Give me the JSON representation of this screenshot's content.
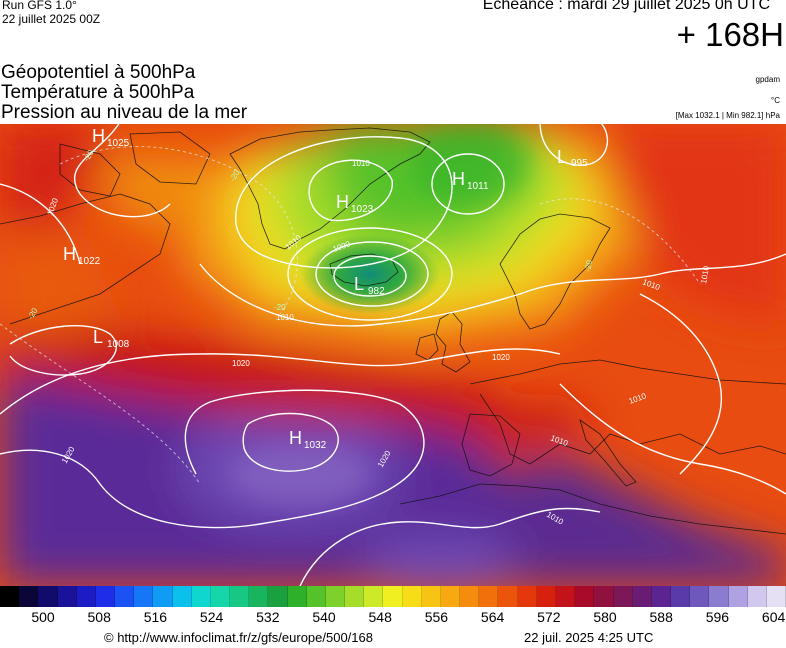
{
  "header": {
    "run_model": "Run GFS 1.0°",
    "run_date": "22 juillet 2025 00Z",
    "echeance": "Echéance : mardi 29 juillet 2025 0h UTC",
    "horizon": "+ 168H"
  },
  "fields": [
    "Géopotentiel à 500hPa",
    "Température à 500hPa",
    "Pression au niveau de la mer"
  ],
  "units": {
    "geopotential": "gpdam",
    "temperature": "°C",
    "pressure_range": "[Max 1032.1 | Min 982.1] hPa"
  },
  "map": {
    "pressure_centers": [
      {
        "type": "H",
        "value": "1025"
      },
      {
        "type": "H",
        "value": "1022"
      },
      {
        "type": "L",
        "value": "1008"
      },
      {
        "type": "H",
        "value": "1023"
      },
      {
        "type": "H",
        "value": "1011"
      },
      {
        "type": "L",
        "value": "995"
      },
      {
        "type": "L",
        "value": "982"
      },
      {
        "type": "H",
        "value": "1032"
      }
    ],
    "isobar_labels": [
      "1020",
      "1010",
      "1010",
      "1000",
      "1010",
      "1020",
      "1020",
      "1020",
      "1020",
      "1010",
      "1010",
      "1010",
      "1010",
      "1010"
    ],
    "temperature_labels": [
      "-20",
      "-20",
      "-20",
      "-20",
      "-20"
    ]
  },
  "colorbar": {
    "labels": [
      "500",
      "508",
      "516",
      "524",
      "532",
      "540",
      "548",
      "556",
      "564",
      "572",
      "580",
      "588",
      "596",
      "604"
    ],
    "colors": [
      "#000000",
      "#0a0638",
      "#130b6b",
      "#1a1298",
      "#1c1cc4",
      "#1e2ee8",
      "#1a52f4",
      "#1576f8",
      "#0f9cf4",
      "#0cc0ec",
      "#10d6d0",
      "#14d6a8",
      "#16c884",
      "#18b45e",
      "#1aa03e",
      "#2eb02a",
      "#56c22a",
      "#7ed02a",
      "#a6dc2a",
      "#ccea28",
      "#f0f020",
      "#f8dc18",
      "#f8c414",
      "#f8a810",
      "#f68c0e",
      "#f2700c",
      "#ec540c",
      "#e4380c",
      "#d8200e",
      "#c4121a",
      "#a80a2a",
      "#901040",
      "#7c1858",
      "#6a1c74",
      "#5c2490",
      "#5a3aa8",
      "#6e58bc",
      "#8c7cd0",
      "#b0a2e2",
      "#d2c8ee",
      "#e6e0f4"
    ]
  },
  "credits": {
    "url": "© http://www.infoclimat.fr/z/gfs/europe/500/168",
    "timestamp": "22 juil. 2025  4:25 UTC"
  }
}
